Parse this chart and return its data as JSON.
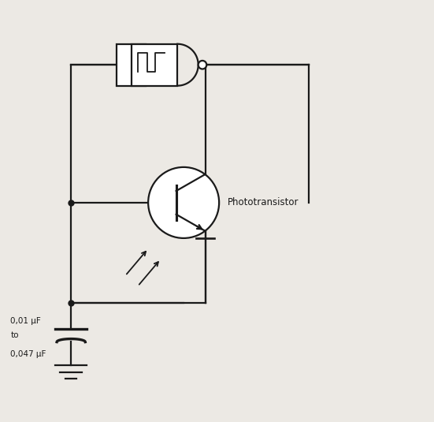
{
  "bg_color": "#ece9e4",
  "line_color": "#1a1a1a",
  "line_width": 1.6,
  "phototransistor_label": "Phototransistor",
  "cap_label1": "0,01 μF",
  "cap_label2": "to",
  "cap_label3": "0,047 μF",
  "figsize": [
    5.51,
    5.35
  ],
  "dpi": 100
}
